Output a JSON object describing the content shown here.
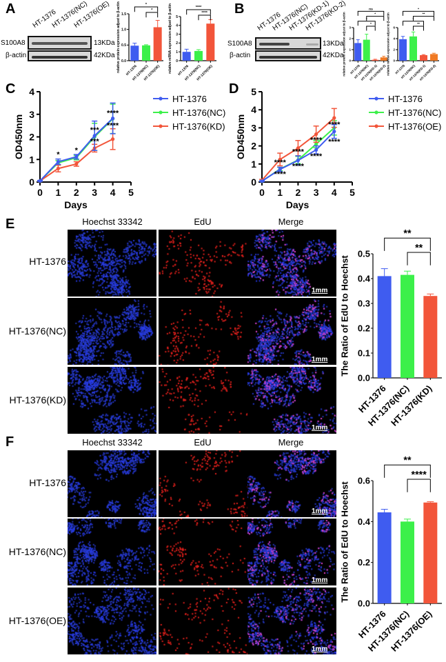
{
  "panels": {
    "A": "A",
    "B": "B",
    "C": "C",
    "D": "D",
    "E": "E",
    "F": "F"
  },
  "colors": {
    "blue": "#3f5cf0",
    "green": "#3cf04a",
    "red": "#f2553a",
    "orange": "#f07a24"
  },
  "western_A": {
    "lanes": [
      "HT-1376",
      "HT-1376(NC)",
      "HT-1376(OE)"
    ],
    "rows": [
      {
        "protein": "S100A8",
        "size": "13KDa"
      },
      {
        "protein": "β-actin",
        "size": "42KDa"
      }
    ]
  },
  "western_B": {
    "lanes": [
      "HT-1376",
      "HT-1376(NC)",
      "HT-1376(KD-1)",
      "HT-1376(KD-2)"
    ],
    "rows": [
      {
        "protein": "S100A8",
        "size": "13KDa"
      },
      {
        "protein": "β-actin",
        "size": "42KDa"
      }
    ]
  },
  "edu_E": {
    "columns": [
      "Hoechst 33342",
      "EdU",
      "Merge"
    ],
    "rows": [
      "HT-1376",
      "HT-1376(NC)",
      "HT-1376(KD)"
    ],
    "scale_bar": "1mm"
  },
  "edu_F": {
    "columns": [
      "Hoechst 33342",
      "EdU",
      "Merge"
    ],
    "rows": [
      "HT-1376",
      "HT-1376(NC)",
      "HT-1376(OE)"
    ],
    "scale_bar": "1mm"
  },
  "chart_data": [
    {
      "id": "A-protein",
      "type": "bar",
      "ylabel": "relative protein expression adjust to β-actin",
      "categories": [
        "HT-1376",
        "HT-1376(NC)",
        "HT-1376(OE)"
      ],
      "values": [
        0.48,
        0.49,
        1.07
      ],
      "errors": [
        0.08,
        0.02,
        0.22
      ],
      "colors": [
        "#3f5cf0",
        "#3cf04a",
        "#f2553a"
      ],
      "ylim": [
        0,
        1.5
      ],
      "yticks": [
        "0.0",
        "0.5",
        "1.0",
        "1.5"
      ],
      "significance": [
        {
          "from": 0,
          "to": 2,
          "label": "*"
        },
        {
          "from": 1,
          "to": 2,
          "label": "*"
        }
      ]
    },
    {
      "id": "A-mrna",
      "type": "bar",
      "ylabel": "relative mRNA expression adjust to β-actin",
      "categories": [
        "HT-1376",
        "HT-1376(NC)",
        "HT-1376(OE)"
      ],
      "values": [
        1.0,
        1.1,
        4.2
      ],
      "errors": [
        0.3,
        0.15,
        0.45
      ],
      "colors": [
        "#3f5cf0",
        "#3cf04a",
        "#f2553a"
      ],
      "ylim": [
        0,
        5
      ],
      "yticks": [
        "0",
        "1",
        "2",
        "3",
        "4",
        "5"
      ],
      "significance": [
        {
          "from": 0,
          "to": 2,
          "label": "****"
        },
        {
          "from": 1,
          "to": 2,
          "label": "****"
        }
      ]
    },
    {
      "id": "B-protein",
      "type": "bar",
      "ylabel": "relative protein expression adjust to β-actin",
      "categories": [
        "HT-1376",
        "HT-1376(NC)",
        "HT-1376(KD-1)",
        "HT-1376(KD-2)"
      ],
      "values": [
        1.6,
        1.9,
        0.08,
        0.3
      ],
      "errors": [
        0.3,
        0.5,
        0.05,
        0.1
      ],
      "colors": [
        "#3f5cf0",
        "#3cf04a",
        "#f2553a",
        "#f07a24"
      ],
      "ylim": [
        0,
        3
      ],
      "yticks": [
        "0",
        "1",
        "2",
        "3"
      ],
      "significance": [
        {
          "from": 0,
          "to": 2,
          "label": "*"
        },
        {
          "from": 0,
          "to": 3,
          "label": "ns"
        },
        {
          "from": 1,
          "to": 3,
          "label": "*"
        },
        {
          "from": 1,
          "to": 2,
          "label": "*"
        }
      ]
    },
    {
      "id": "B-mrna",
      "type": "bar",
      "ylabel": "relative mRNA expression adjust to β-actin",
      "categories": [
        "HT-1376",
        "HT-1376(NC)",
        "HT-1376(KD-1)",
        "HT-1376(KD-2)"
      ],
      "values": [
        3.9,
        4.4,
        1.0,
        1.2
      ],
      "errors": [
        0.5,
        0.8,
        0.1,
        0.15
      ],
      "colors": [
        "#3f5cf0",
        "#3cf04a",
        "#f2553a",
        "#f07a24"
      ],
      "ylim": [
        0,
        6
      ],
      "yticks": [
        "0",
        "2",
        "4",
        "6"
      ],
      "significance": [
        {
          "from": 0,
          "to": 3,
          "label": "*"
        },
        {
          "from": 0,
          "to": 2,
          "label": "*"
        },
        {
          "from": 1,
          "to": 3,
          "label": "**"
        },
        {
          "from": 1,
          "to": 2,
          "label": "**"
        }
      ]
    },
    {
      "id": "C",
      "type": "line",
      "xlabel": "Days",
      "ylabel": "OD450nm",
      "xlim": [
        0,
        5
      ],
      "ylim": [
        0,
        4
      ],
      "xticks": [
        "0",
        "1",
        "2",
        "3",
        "4",
        "5"
      ],
      "yticks": [
        "0",
        "1",
        "2",
        "3",
        "4"
      ],
      "legend": "right",
      "x": [
        0,
        1,
        2,
        3,
        4
      ],
      "series": [
        {
          "name": "HT-1376",
          "color": "#3f5cf0",
          "marker": "circle",
          "values": [
            0.05,
            0.9,
            1.12,
            2.05,
            2.82
          ],
          "errors": [
            0.02,
            0.12,
            0.1,
            0.65,
            0.68
          ]
        },
        {
          "name": "HT-1376(NC)",
          "color": "#3cf04a",
          "marker": "square",
          "values": [
            0.05,
            0.85,
            1.08,
            2.0,
            2.8
          ],
          "errors": [
            0.02,
            0.1,
            0.1,
            0.6,
            0.65
          ]
        },
        {
          "name": "HT-1376(KD)",
          "color": "#f2553a",
          "marker": "triangle",
          "values": [
            0.05,
            0.6,
            0.8,
            1.5,
            1.9
          ],
          "errors": [
            0.02,
            0.15,
            0.1,
            0.17,
            0.46
          ]
        }
      ],
      "annotations": [
        {
          "x": 1,
          "y": 1.12,
          "label": "*"
        },
        {
          "x": 2,
          "y": 1.3,
          "label": "*"
        },
        {
          "x": 3,
          "y": 2.2,
          "label": "***"
        },
        {
          "x": 3,
          "y": 1.7,
          "label": "***"
        },
        {
          "x": 4,
          "y": 2.95,
          "label": "****"
        },
        {
          "x": 4,
          "y": 2.4,
          "label": "****"
        }
      ]
    },
    {
      "id": "D",
      "type": "line",
      "xlabel": "Days",
      "ylabel": "OD450nm",
      "xlim": [
        0,
        5
      ],
      "ylim": [
        0,
        5
      ],
      "xticks": [
        "0",
        "1",
        "2",
        "3",
        "4",
        "5"
      ],
      "yticks": [
        "0",
        "1",
        "2",
        "3",
        "4",
        "5"
      ],
      "legend": "right",
      "x": [
        0,
        1,
        2,
        3,
        4
      ],
      "series": [
        {
          "name": "HT-1376",
          "color": "#3f5cf0",
          "marker": "circle",
          "values": [
            0.05,
            0.7,
            1.2,
            1.78,
            2.8
          ],
          "errors": [
            0.02,
            0.12,
            0.25,
            0.22,
            0.38
          ]
        },
        {
          "name": "HT-1376(NC)",
          "color": "#3cf04a",
          "marker": "square",
          "values": [
            0.05,
            0.72,
            1.22,
            2.1,
            3.0
          ],
          "errors": [
            0.02,
            0.1,
            0.2,
            0.2,
            0.4
          ]
        },
        {
          "name": "HT-1376(OE)",
          "color": "#f2553a",
          "marker": "triangle",
          "values": [
            0.1,
            1.25,
            1.88,
            2.65,
            3.55
          ],
          "errors": [
            0.05,
            0.35,
            0.42,
            0.45,
            0.52
          ]
        }
      ],
      "annotations": [
        {
          "x": 1,
          "y": 0.95,
          "label": "****"
        },
        {
          "x": 1,
          "y": 0.3,
          "label": "****"
        },
        {
          "x": 2,
          "y": 1.55,
          "label": "****"
        },
        {
          "x": 2,
          "y": 0.75,
          "label": "****"
        },
        {
          "x": 3,
          "y": 2.2,
          "label": "****"
        },
        {
          "x": 3,
          "y": 1.3,
          "label": "****"
        },
        {
          "x": 4,
          "y": 3.05,
          "label": "****"
        },
        {
          "x": 4,
          "y": 2.1,
          "label": "****"
        }
      ]
    },
    {
      "id": "E",
      "type": "bar",
      "ylabel": "The Ratio of EdU to Hoechst",
      "categories": [
        "HT-1376",
        "HT-1376(NC)",
        "HT-1376(KD)"
      ],
      "values": [
        0.41,
        0.415,
        0.33
      ],
      "errors": [
        0.03,
        0.015,
        0.008
      ],
      "colors": [
        "#3f5cf0",
        "#3cf04a",
        "#f2553a"
      ],
      "ylim": [
        0,
        0.5
      ],
      "yticks": [
        "0.0",
        "0.1",
        "0.2",
        "0.3",
        "0.4",
        "0.5"
      ],
      "significance": [
        {
          "from": 0,
          "to": 2,
          "label": "**"
        },
        {
          "from": 1,
          "to": 2,
          "label": "**"
        }
      ]
    },
    {
      "id": "F",
      "type": "bar",
      "ylabel": "The Ratio of EdU to Hoechst",
      "categories": [
        "HT-1376",
        "HT-1376(NC)",
        "HT-1376(OE)"
      ],
      "values": [
        0.445,
        0.4,
        0.493
      ],
      "errors": [
        0.015,
        0.012,
        0.004
      ],
      "colors": [
        "#3f5cf0",
        "#3cf04a",
        "#f2553a"
      ],
      "ylim": [
        0,
        0.6
      ],
      "yticks": [
        "0.0",
        "0.2",
        "0.4",
        "0.6"
      ],
      "significance": [
        {
          "from": 0,
          "to": 2,
          "label": "**"
        },
        {
          "from": 1,
          "to": 2,
          "label": "****"
        }
      ]
    }
  ]
}
